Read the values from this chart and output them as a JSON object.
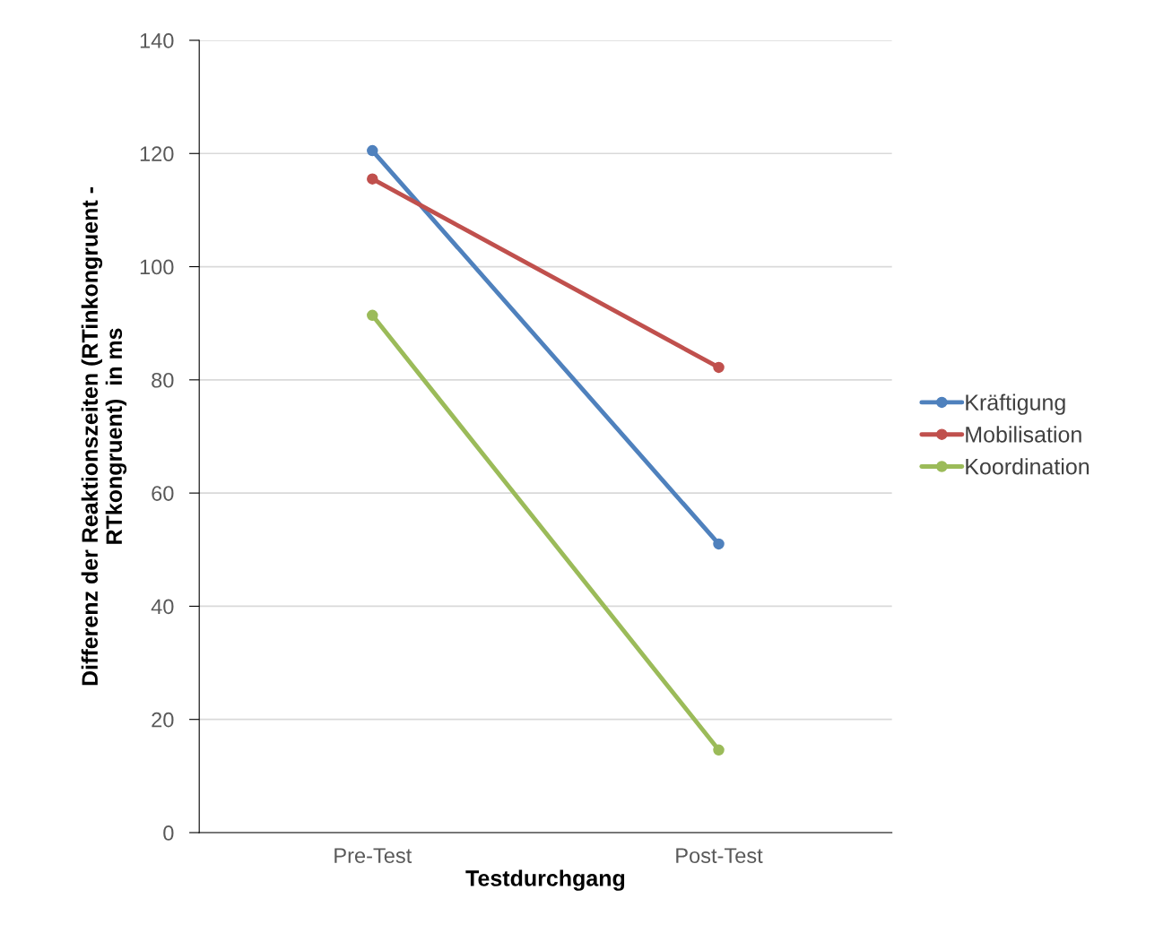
{
  "chart_data": {
    "type": "line",
    "xlabel": "Testdurchgang",
    "ylabel": "Differenz der Reaktionszeiten (RTinkongruent -\nRTkongruent)  in ms",
    "categories": [
      "Pre-Test",
      "Post-Test"
    ],
    "series": [
      {
        "name": "Kräftigung",
        "color": "#4f81bd",
        "values": [
          120.5,
          51.0
        ]
      },
      {
        "name": "Mobilisation",
        "color": "#c0504d",
        "values": [
          115.5,
          82.2
        ]
      },
      {
        "name": "Koordination",
        "color": "#9bbb59",
        "values": [
          91.4,
          14.6
        ]
      }
    ],
    "ylim": [
      0,
      140
    ],
    "yticks": [
      0,
      20,
      40,
      60,
      80,
      100,
      120,
      140
    ],
    "grid": "y",
    "legend": "right",
    "marker": "circle",
    "line_style": "solid"
  }
}
